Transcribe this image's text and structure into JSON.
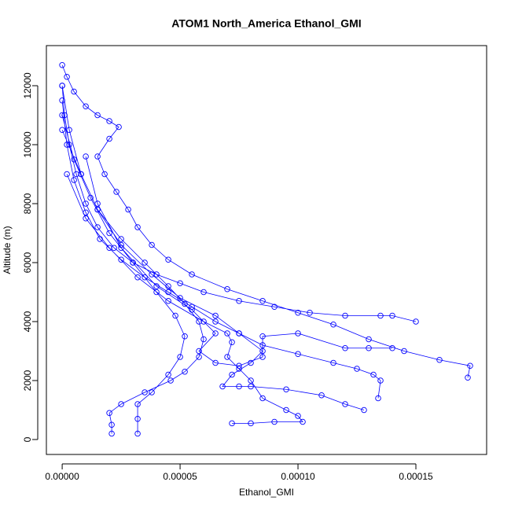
{
  "chart_data": {
    "type": "scatter",
    "connect": true,
    "title": "ATOM1 North_America Ethanol_GMI",
    "x_label": "Ethanol_GMI",
    "y_label": "Altitude (m)",
    "xlim": [
      -6.7e-06,
      0.00018
    ],
    "ylim": [
      -507,
      13360
    ],
    "xticks": [
      {
        "value": 0,
        "label": "0.00000"
      },
      {
        "value": 5e-05,
        "label": "0.00005"
      },
      {
        "value": 0.0001,
        "label": "0.00010"
      },
      {
        "value": 0.00015,
        "label": "0.00015"
      }
    ],
    "yticks": [
      0,
      2000,
      4000,
      6000,
      8000,
      10000,
      12000
    ],
    "series": [
      {
        "color": "#0000ff",
        "x": [
          0,
          2e-06,
          5e-06,
          1e-05,
          1.5e-05,
          2e-05,
          2.4e-05,
          2e-05,
          1.5e-05,
          1.8e-05,
          2.3e-05,
          2.8e-05,
          3.2e-05,
          3.8e-05,
          4.5e-05,
          5.5e-05,
          7e-05,
          8.5e-05,
          0.0001,
          0.000115,
          0.00013,
          0.000145,
          0.00016,
          0.000173,
          0.000172,
          null,
          0,
          1e-06,
          3e-06,
          6e-06,
          1e-05,
          1.5e-05,
          2.2e-05,
          3e-05,
          4e-05,
          5e-05,
          6e-05,
          7.5e-05,
          9e-05,
          0.000105,
          0.00012,
          0.000135,
          0.00014,
          0.00015,
          null,
          0,
          2e-06,
          5e-06,
          1e-05,
          1.6e-05,
          2.5e-05,
          3.5e-05,
          4.5e-05,
          5.5e-05,
          6.5e-05,
          7.5e-05,
          8.5e-05,
          0.0001,
          0.000115,
          0.000125,
          0.000132,
          0.000135,
          0.000134,
          null,
          0,
          3e-06,
          8e-06,
          1.5e-05,
          2.5e-05,
          3.5e-05,
          4.5e-05,
          5.2e-05,
          5.8e-05,
          6e-05,
          5.8e-05,
          5.2e-05,
          4.6e-05,
          3.5e-05,
          2.5e-05,
          2e-05,
          2.1e-05,
          2.1e-05,
          null,
          0,
          5e-06,
          1.2e-05,
          2e-05,
          3e-05,
          4e-05,
          4.8e-05,
          5.2e-05,
          5e-05,
          4.5e-05,
          3.8e-05,
          3.2e-05,
          3.2e-05,
          3.2e-05,
          null,
          0,
          8e-06,
          1.5e-05,
          2.5e-05,
          3.8e-05,
          5e-05,
          6.5e-05,
          7.5e-05,
          8.5e-05,
          8e-05,
          7.2e-05,
          6.8e-05,
          7.5e-05,
          8e-05,
          9.5e-05,
          0.00011,
          0.00012,
          0.000128,
          null,
          2e-06,
          1e-05,
          2e-05,
          3.2e-05,
          4.5e-05,
          6e-05,
          7e-05,
          7.2e-05,
          7e-05,
          7.5e-05,
          8e-05,
          8.5e-05,
          9.5e-05,
          0.0001,
          0.000102,
          9e-05,
          8e-05,
          7.2e-05,
          null,
          1e-05,
          1.5e-05,
          2.5e-05,
          4e-05,
          5.5e-05,
          6.5e-05,
          5.8e-05,
          6.5e-05,
          7.5e-05,
          8.5e-05,
          8.5e-05,
          0.0001,
          0.00012,
          0.00013,
          0.00014
        ],
        "y": [
          12700,
          12300,
          11800,
          11300,
          11000,
          10800,
          10600,
          10200,
          9600,
          9000,
          8400,
          7800,
          7200,
          6600,
          6100,
          5600,
          5100,
          4700,
          4300,
          3900,
          3400,
          3000,
          2700,
          2500,
          2100,
          null,
          12000,
          11000,
          10000,
          9000,
          8000,
          7200,
          6500,
          6000,
          5600,
          5300,
          5000,
          4700,
          4500,
          4300,
          4200,
          4200,
          4200,
          4000,
          null,
          11500,
          10000,
          8800,
          7700,
          6800,
          6100,
          5500,
          5000,
          4500,
          4000,
          3600,
          3200,
          2900,
          2600,
          2400,
          2200,
          2000,
          1400,
          null,
          12000,
          10500,
          9000,
          7800,
          6800,
          6000,
          5200,
          4600,
          4000,
          3400,
          2800,
          2300,
          2000,
          1600,
          1200,
          900,
          500,
          200,
          null,
          11000,
          9500,
          8200,
          7000,
          6000,
          5000,
          4200,
          3500,
          2800,
          2200,
          1600,
          1200,
          700,
          200,
          null,
          10500,
          9000,
          7800,
          6600,
          5600,
          4800,
          4200,
          3600,
          3000,
          2600,
          2200,
          1800,
          1800,
          1800,
          1700,
          1500,
          1200,
          1000,
          null,
          9000,
          7500,
          6500,
          5500,
          4700,
          4000,
          3600,
          3300,
          2800,
          2400,
          2000,
          1400,
          1000,
          800,
          600,
          600,
          550,
          550,
          null,
          9600,
          8000,
          6500,
          5200,
          4400,
          3600,
          3000,
          2600,
          2500,
          2800,
          3500,
          3600,
          3100,
          3100,
          3100
        ]
      }
    ]
  }
}
